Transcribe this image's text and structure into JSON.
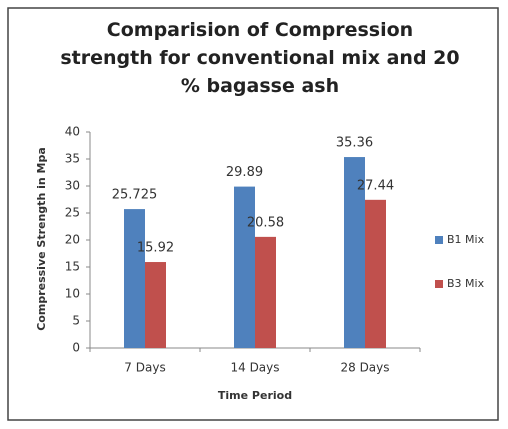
{
  "chart_data": {
    "type": "bar",
    "title": "Comparision of Compression strength for conventional mix and 20 % bagasse ash",
    "categories": [
      "7 Days",
      "14 Days",
      "28 Days"
    ],
    "series": [
      {
        "name": "B1 Mix",
        "color": "#4f81bd",
        "values": [
          25.725,
          29.89,
          35.36
        ]
      },
      {
        "name": "B3 Mix",
        "color": "#c0504d",
        "values": [
          15.92,
          20.58,
          27.44
        ]
      }
    ],
    "x_label": "Time Period",
    "y_label": "Compressive Strength in Mpa",
    "ylim": [
      0,
      40
    ],
    "yticks": [
      0,
      5,
      10,
      15,
      20,
      25,
      30,
      35,
      40
    ],
    "grid": false,
    "legend": "right"
  }
}
